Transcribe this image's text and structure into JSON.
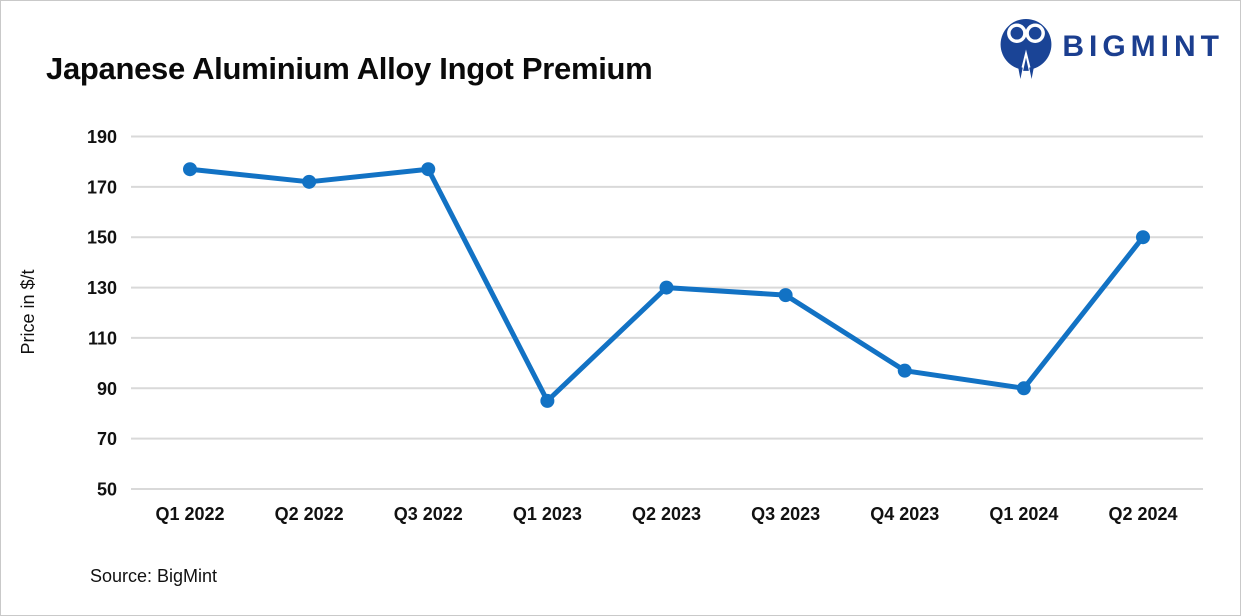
{
  "header": {
    "title": "Japanese Aluminium Alloy Ingot Premium"
  },
  "brand": {
    "name": "BIGMINT",
    "icon": "bigmint-two-people-monogram",
    "text_color": "#1b3e8f",
    "icon_color": "#1a4496"
  },
  "chart_data": {
    "type": "line",
    "title": "Japanese Aluminium Alloy Ingot Premium",
    "categories": [
      "Q1 2022",
      "Q2 2022",
      "Q3 2022",
      "Q1 2023",
      "Q2 2023",
      "Q3 2023",
      "Q4 2023",
      "Q1 2024",
      "Q2 2024"
    ],
    "series": [
      {
        "name": "Japanese Aluminium Alloy Ingot Premium",
        "values": [
          177,
          172,
          177,
          85,
          130,
          127,
          97,
          90,
          150
        ]
      }
    ],
    "xlabel": "",
    "ylabel": "Price in $/t",
    "ylim": [
      50,
      190
    ],
    "yticks": [
      50,
      70,
      90,
      110,
      130,
      150,
      170,
      190
    ],
    "grid": true,
    "legend": false,
    "line_color": "#1272c4",
    "marker_color": "#1272c4",
    "marker": "circle",
    "gridline_color": "#d9d9d9"
  },
  "footer": {
    "source": "Source: BigMint"
  }
}
